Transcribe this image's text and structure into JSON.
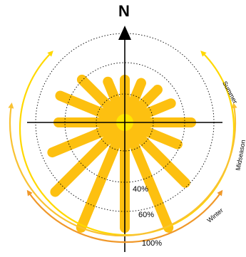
{
  "title": "N",
  "seasons": {
    "summer": "Summer",
    "midseason": "Midseason",
    "winter": "Winter"
  },
  "rings": [
    "40%",
    "60%",
    "100%"
  ]
}
